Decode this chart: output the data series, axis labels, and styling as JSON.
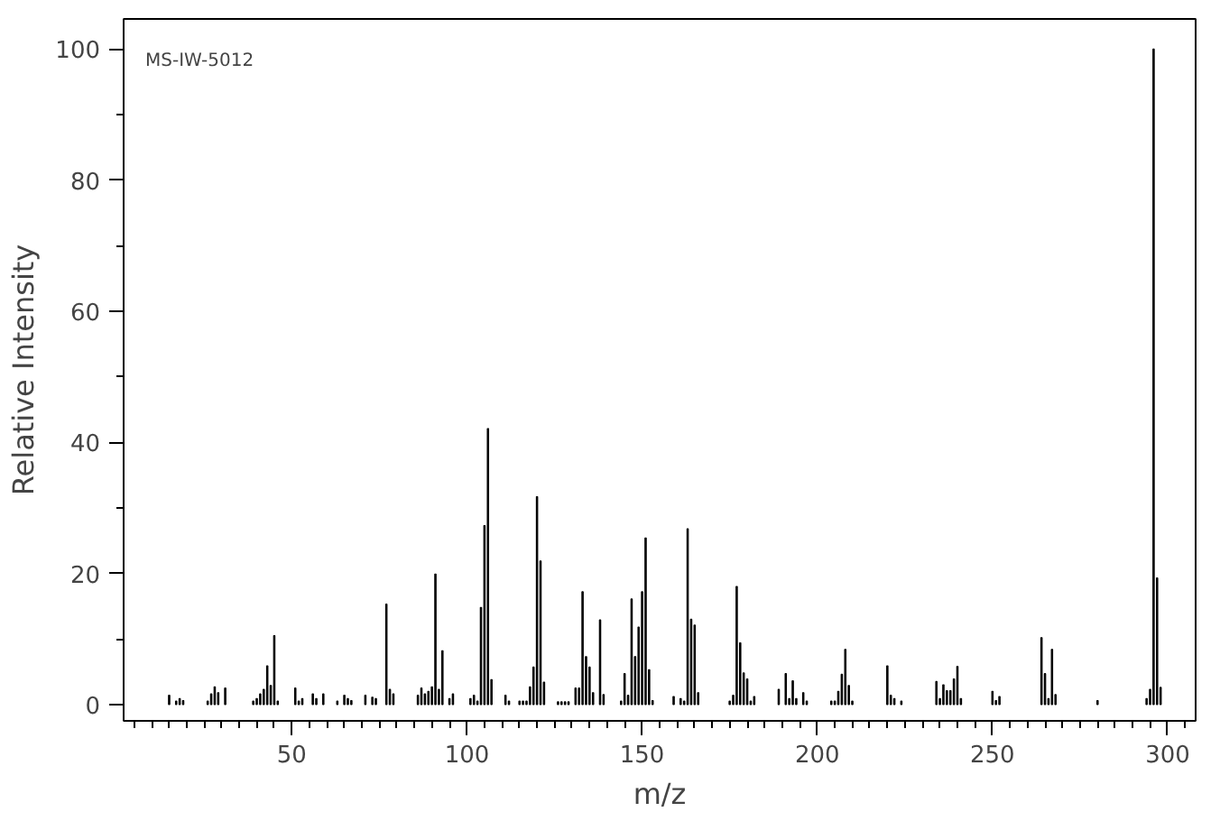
{
  "chart_data": {
    "type": "bar",
    "xlabel": "m/z",
    "ylabel": "Relative Intensity",
    "annotations": [
      "MS-IW-5012"
    ],
    "x": [
      15,
      17,
      18,
      19,
      26,
      27,
      28,
      29,
      31,
      39,
      40,
      41,
      42,
      43,
      44,
      45,
      46,
      51,
      52,
      53,
      56,
      57,
      59,
      63,
      65,
      66,
      67,
      71,
      73,
      74,
      77,
      78,
      79,
      86,
      87,
      88,
      89,
      90,
      91,
      92,
      93,
      95,
      96,
      101,
      102,
      103,
      104,
      105,
      106,
      107,
      111,
      112,
      115,
      116,
      117,
      118,
      119,
      120,
      121,
      122,
      126,
      127,
      128,
      129,
      131,
      132,
      133,
      134,
      135,
      136,
      138,
      139,
      144,
      145,
      146,
      147,
      148,
      149,
      150,
      151,
      152,
      153,
      159,
      161,
      162,
      163,
      164,
      165,
      166,
      175,
      176,
      177,
      178,
      179,
      180,
      181,
      182,
      189,
      191,
      192,
      193,
      194,
      196,
      197,
      204,
      205,
      206,
      207,
      208,
      209,
      210,
      220,
      221,
      222,
      224,
      234,
      235,
      236,
      237,
      238,
      239,
      240,
      241,
      250,
      251,
      252,
      264,
      265,
      266,
      267,
      268,
      280,
      294,
      295,
      296,
      297,
      298
    ],
    "values": [
      1.4,
      0.5,
      0.9,
      0.6,
      0.5,
      1.6,
      2.7,
      1.8,
      2.5,
      0.5,
      0.9,
      1.6,
      2.3,
      5.9,
      2.9,
      10.5,
      0.5,
      2.5,
      0.5,
      0.9,
      1.6,
      0.9,
      1.6,
      0.5,
      1.4,
      0.9,
      0.6,
      1.4,
      1.1,
      0.9,
      15.3,
      2.3,
      1.6,
      1.4,
      2.5,
      1.6,
      2,
      2.7,
      19.9,
      2.3,
      8.2,
      0.9,
      1.6,
      0.9,
      1.4,
      0.5,
      14.8,
      27.3,
      42.1,
      3.8,
      1.4,
      0.5,
      0.5,
      0.5,
      0.5,
      2.7,
      5.7,
      31.7,
      21.9,
      3.4,
      0.4,
      0.4,
      0.4,
      0.4,
      2.5,
      2.5,
      17.2,
      7.3,
      5.7,
      1.8,
      12.9,
      1.5,
      0.5,
      4.7,
      1.4,
      16.1,
      7.3,
      11.8,
      17.2,
      25.4,
      5.3,
      0.6,
      1.2,
      0.9,
      0.5,
      26.8,
      13,
      12.1,
      1.8,
      0.5,
      1.4,
      18,
      9.4,
      4.8,
      3.9,
      0.5,
      1.2,
      2.3,
      4.7,
      0.9,
      3.6,
      0.9,
      1.8,
      0.5,
      0.5,
      0.5,
      2,
      4.6,
      8.4,
      2.9,
      0.5,
      5.9,
      1.4,
      0.9,
      0.5,
      3.5,
      0.9,
      3,
      2.1,
      2.1,
      3.9,
      5.8,
      0.9,
      2,
      0.6,
      1.2,
      10.2,
      4.7,
      0.9,
      8.4,
      1.5,
      0.6,
      0.9,
      2.3,
      100,
      19.3,
      2.6
    ],
    "color": "#000000",
    "xlim": [
      2,
      308
    ],
    "ylim": [
      -2.5,
      104.6
    ],
    "xticks": [
      {
        "value": 5,
        "label": null
      },
      {
        "value": 10,
        "label": null
      },
      {
        "value": 15,
        "label": null
      },
      {
        "value": 20,
        "label": null
      },
      {
        "value": 25,
        "label": null
      },
      {
        "value": 30,
        "label": null
      },
      {
        "value": 35,
        "label": null
      },
      {
        "value": 40,
        "label": null
      },
      {
        "value": 45,
        "label": null
      },
      50,
      {
        "value": 55,
        "label": null
      },
      {
        "value": 60,
        "label": null
      },
      {
        "value": 65,
        "label": null
      },
      {
        "value": 70,
        "label": null
      },
      {
        "value": 75,
        "label": null
      },
      {
        "value": 80,
        "label": null
      },
      {
        "value": 85,
        "label": null
      },
      {
        "value": 90,
        "label": null
      },
      {
        "value": 95,
        "label": null
      },
      100,
      {
        "value": 105,
        "label": null
      },
      {
        "value": 110,
        "label": null
      },
      {
        "value": 115,
        "label": null
      },
      {
        "value": 120,
        "label": null
      },
      {
        "value": 125,
        "label": null
      },
      {
        "value": 130,
        "label": null
      },
      {
        "value": 135,
        "label": null
      },
      {
        "value": 140,
        "label": null
      },
      {
        "value": 145,
        "label": null
      },
      150,
      {
        "value": 155,
        "label": null
      },
      {
        "value": 160,
        "label": null
      },
      {
        "value": 165,
        "label": null
      },
      {
        "value": 170,
        "label": null
      },
      {
        "value": 175,
        "label": null
      },
      {
        "value": 180,
        "label": null
      },
      {
        "value": 185,
        "label": null
      },
      {
        "value": 190,
        "label": null
      },
      {
        "value": 195,
        "label": null
      },
      200,
      {
        "value": 205,
        "label": null
      },
      {
        "value": 210,
        "label": null
      },
      {
        "value": 215,
        "label": null
      },
      {
        "value": 220,
        "label": null
      },
      {
        "value": 225,
        "label": null
      },
      {
        "value": 230,
        "label": null
      },
      {
        "value": 235,
        "label": null
      },
      {
        "value": 240,
        "label": null
      },
      {
        "value": 245,
        "label": null
      },
      250,
      {
        "value": 255,
        "label": null
      },
      {
        "value": 260,
        "label": null
      },
      {
        "value": 265,
        "label": null
      },
      {
        "value": 270,
        "label": null
      },
      {
        "value": 275,
        "label": null
      },
      {
        "value": 280,
        "label": null
      },
      {
        "value": 285,
        "label": null
      },
      {
        "value": 290,
        "label": null
      },
      {
        "value": 295,
        "label": null
      },
      300,
      {
        "value": 305,
        "label": null
      }
    ],
    "yticks": [
      0,
      {
        "value": 10,
        "label": null
      },
      20,
      {
        "value": 30,
        "label": null
      },
      40,
      {
        "value": 50,
        "label": null
      },
      60,
      {
        "value": 70,
        "label": null
      },
      80,
      {
        "value": 90,
        "label": null
      },
      100
    ],
    "grid": false
  }
}
